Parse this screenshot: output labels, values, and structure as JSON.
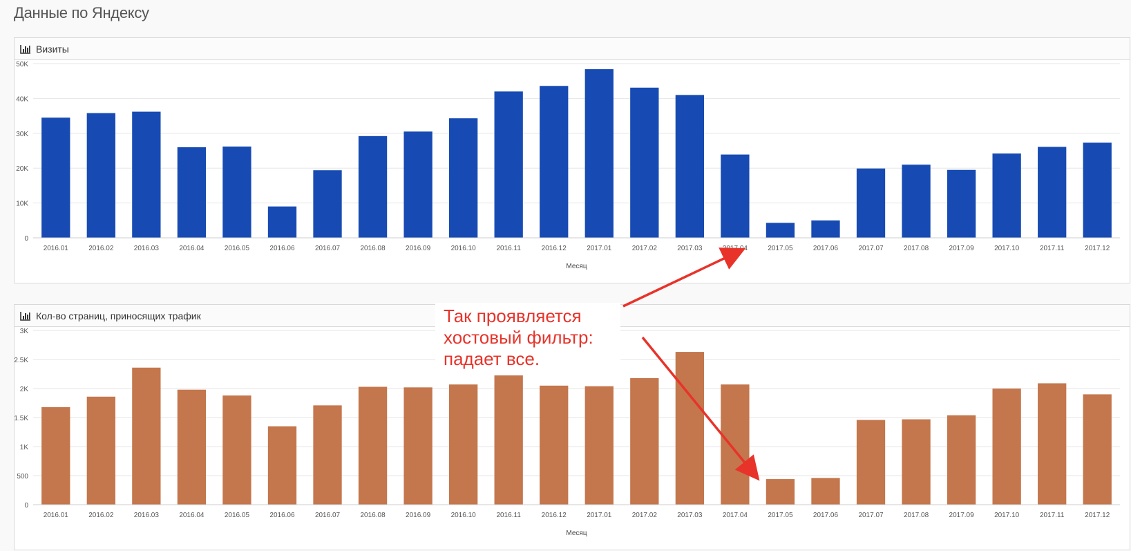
{
  "page": {
    "title": "Данные по Яндексу"
  },
  "colors": {
    "visits_bar": "#174bb3",
    "pages_bar": "#c4764c",
    "annotation": "#e8332a",
    "grid": "#e6e6e6"
  },
  "icons": {
    "panel_icon": "bar-chart-icon"
  },
  "chart_data": [
    {
      "type": "bar",
      "title": "Визиты",
      "xlabel": "Месяц",
      "ylabel": "",
      "ylim": [
        0,
        50000
      ],
      "yticks": [
        0,
        10000,
        20000,
        30000,
        40000,
        50000
      ],
      "ytick_labels": [
        "0",
        "10K",
        "20K",
        "30K",
        "40K",
        "50K"
      ],
      "grid": true,
      "categories": [
        "2016.01",
        "2016.02",
        "2016.03",
        "2016.04",
        "2016.05",
        "2016.06",
        "2016.07",
        "2016.08",
        "2016.09",
        "2016.10",
        "2016.11",
        "2016.12",
        "2017.01",
        "2017.02",
        "2017.03",
        "2017.04",
        "2017.05",
        "2017.06",
        "2017.07",
        "2017.08",
        "2017.09",
        "2017.10",
        "2017.11",
        "2017.12"
      ],
      "values": [
        34500,
        35800,
        36200,
        26000,
        26200,
        9000,
        19400,
        29200,
        30500,
        34300,
        42000,
        43600,
        48400,
        43100,
        41000,
        23900,
        4300,
        5000,
        19900,
        21000,
        19500,
        24200,
        26100,
        27300
      ]
    },
    {
      "type": "bar",
      "title": "Кол-во страниц, приносящих трафик",
      "xlabel": "Месяц",
      "ylabel": "",
      "ylim": [
        0,
        3000
      ],
      "yticks": [
        0,
        500,
        1000,
        1500,
        2000,
        2500,
        3000
      ],
      "ytick_labels": [
        "0",
        "500",
        "1K",
        "1.5K",
        "2K",
        "2.5K",
        "3K"
      ],
      "grid": true,
      "categories": [
        "2016.01",
        "2016.02",
        "2016.03",
        "2016.04",
        "2016.05",
        "2016.06",
        "2016.07",
        "2016.08",
        "2016.09",
        "2016.10",
        "2016.11",
        "2016.12",
        "2017.01",
        "2017.02",
        "2017.03",
        "2017.04",
        "2017.05",
        "2017.06",
        "2017.07",
        "2017.08",
        "2017.09",
        "2017.10",
        "2017.11",
        "2017.12"
      ],
      "values": [
        1680,
        1860,
        2360,
        1980,
        1880,
        1350,
        1710,
        2030,
        2020,
        2070,
        2260,
        2050,
        2040,
        2180,
        2630,
        2070,
        440,
        460,
        1460,
        1470,
        1540,
        2000,
        2090,
        1900
      ]
    }
  ],
  "annotation": {
    "lines": [
      "Так проявляется",
      "хостовый фильтр:",
      "падает все."
    ]
  }
}
